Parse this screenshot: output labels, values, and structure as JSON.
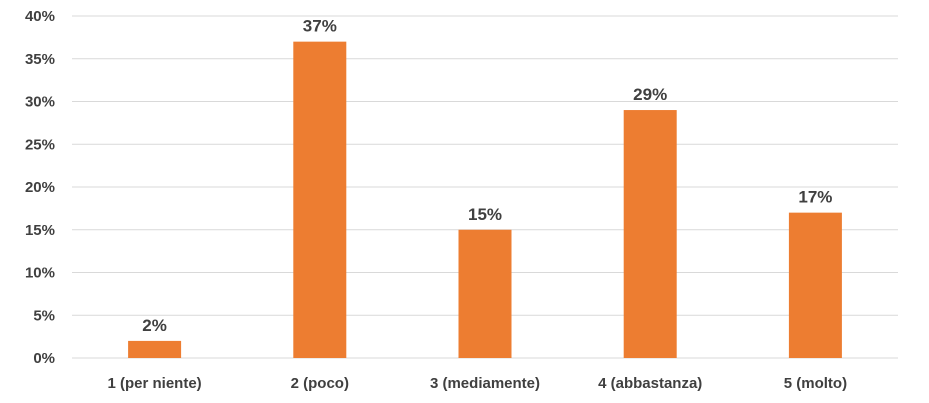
{
  "chart_data": {
    "type": "bar",
    "categories": [
      "1 (per niente)",
      "2 (poco)",
      "3 (mediamente)",
      "4 (abbastanza)",
      "5 (molto)"
    ],
    "values": [
      2,
      37,
      15,
      29,
      17
    ],
    "data_labels": [
      "2%",
      "37%",
      "15%",
      "29%",
      "17%"
    ],
    "y_ticks": [
      0,
      5,
      10,
      15,
      20,
      25,
      30,
      35,
      40
    ],
    "y_tick_labels": [
      "0%",
      "5%",
      "10%",
      "15%",
      "20%",
      "25%",
      "30%",
      "35%",
      "40%"
    ],
    "ylim": [
      0,
      40
    ],
    "grid": true,
    "legend": "none",
    "colors": {
      "bar": "#ED7D31",
      "grid": "#D9D9D9",
      "text": "#404040"
    }
  }
}
